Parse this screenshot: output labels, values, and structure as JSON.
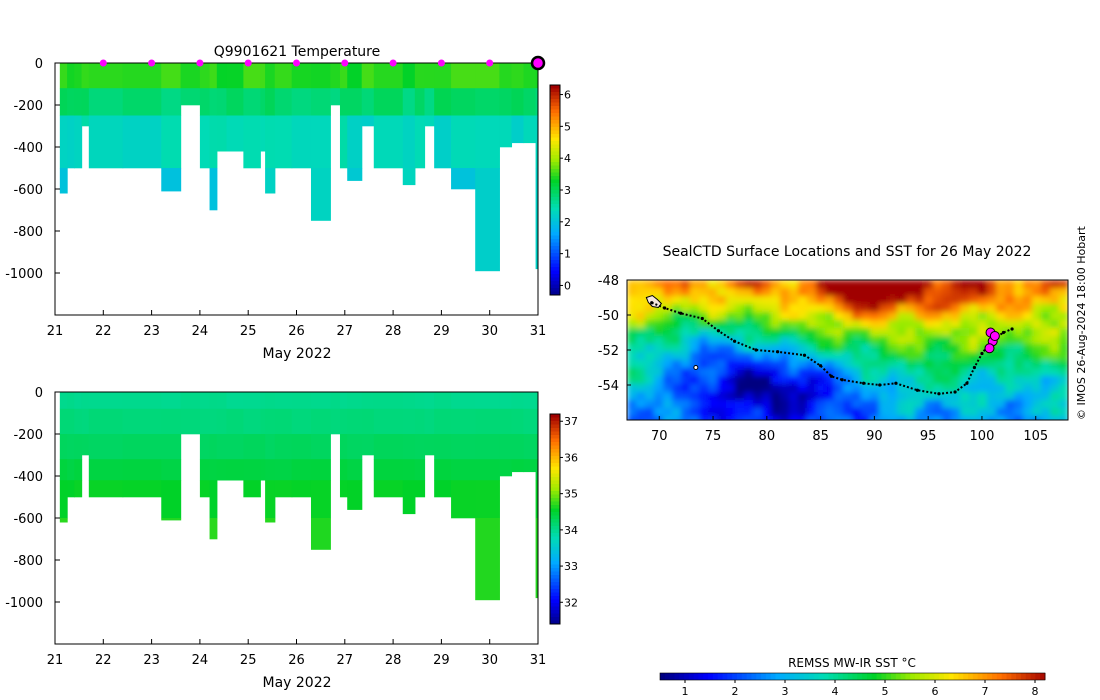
{
  "chart_data": [
    {
      "id": "temp",
      "type": "heatmap",
      "title": "Q9901621  Temperature",
      "xlabel": "May 2022",
      "ylabel": "",
      "xlim": [
        21,
        31
      ],
      "ylim": [
        0,
        -1200
      ],
      "x_ticks": [
        21,
        22,
        23,
        24,
        25,
        26,
        27,
        28,
        29,
        30,
        31
      ],
      "y_ticks": [
        0,
        -200,
        -400,
        -600,
        -800,
        -1000
      ],
      "colorbar": {
        "range": [
          -0.3,
          6.3
        ],
        "ticks": [
          0,
          1,
          2,
          3,
          4,
          5,
          6
        ]
      },
      "profile_markers_x": [
        22,
        23,
        24,
        25,
        26,
        27,
        28,
        29,
        30
      ],
      "last_marker_x": 31,
      "layers": [
        {
          "top": 0,
          "bottom": 120,
          "value": 3.5
        },
        {
          "top": 120,
          "bottom": 250,
          "value": 2.9
        },
        {
          "top": 250,
          "bottom": 500,
          "value": 2.4
        },
        {
          "top": 500,
          "bottom": 1000,
          "value": 2.2
        }
      ],
      "dive_depths": [
        {
          "x0": 21.1,
          "x1": 21.25,
          "depth": 620
        },
        {
          "x0": 21.25,
          "x1": 21.4,
          "depth": 500
        },
        {
          "x0": 21.4,
          "x1": 21.55,
          "depth": 500
        },
        {
          "x0": 21.55,
          "x1": 21.7,
          "depth": 300
        },
        {
          "x0": 21.7,
          "x1": 22.4,
          "depth": 500
        },
        {
          "x0": 22.4,
          "x1": 23.2,
          "depth": 500
        },
        {
          "x0": 23.2,
          "x1": 23.6,
          "depth": 610
        },
        {
          "x0": 23.6,
          "x1": 24.0,
          "depth": 200
        },
        {
          "x0": 24.0,
          "x1": 24.2,
          "depth": 500
        },
        {
          "x0": 24.2,
          "x1": 24.35,
          "depth": 700
        },
        {
          "x0": 24.35,
          "x1": 24.55,
          "depth": 420
        },
        {
          "x0": 24.55,
          "x1": 24.9,
          "depth": 420
        },
        {
          "x0": 24.9,
          "x1": 25.25,
          "depth": 500
        },
        {
          "x0": 25.25,
          "x1": 25.35,
          "depth": 420
        },
        {
          "x0": 25.35,
          "x1": 25.55,
          "depth": 620
        },
        {
          "x0": 25.55,
          "x1": 25.9,
          "depth": 500
        },
        {
          "x0": 25.9,
          "x1": 26.3,
          "depth": 500
        },
        {
          "x0": 26.3,
          "x1": 26.7,
          "depth": 750
        },
        {
          "x0": 26.7,
          "x1": 26.9,
          "depth": 200
        },
        {
          "x0": 26.9,
          "x1": 27.05,
          "depth": 500
        },
        {
          "x0": 27.05,
          "x1": 27.35,
          "depth": 560
        },
        {
          "x0": 27.35,
          "x1": 27.6,
          "depth": 300
        },
        {
          "x0": 27.6,
          "x1": 28.2,
          "depth": 500
        },
        {
          "x0": 28.2,
          "x1": 28.45,
          "depth": 580
        },
        {
          "x0": 28.45,
          "x1": 28.65,
          "depth": 500
        },
        {
          "x0": 28.65,
          "x1": 28.85,
          "depth": 300
        },
        {
          "x0": 28.85,
          "x1": 29.2,
          "depth": 500
        },
        {
          "x0": 29.2,
          "x1": 29.7,
          "depth": 600
        },
        {
          "x0": 29.7,
          "x1": 30.2,
          "depth": 990
        },
        {
          "x0": 30.2,
          "x1": 30.45,
          "depth": 400
        },
        {
          "x0": 30.45,
          "x1": 30.7,
          "depth": 380
        },
        {
          "x0": 30.7,
          "x1": 30.95,
          "depth": 380
        },
        {
          "x0": 30.95,
          "x1": 31.0,
          "depth": 980
        }
      ]
    },
    {
      "id": "sal",
      "type": "heatmap",
      "title": "",
      "xlabel": "May 2022",
      "ylabel": "",
      "xlim": [
        21,
        31
      ],
      "ylim": [
        0,
        -1200
      ],
      "x_ticks": [
        21,
        22,
        23,
        24,
        25,
        26,
        27,
        28,
        29,
        30,
        31
      ],
      "y_ticks": [
        0,
        -200,
        -400,
        -600,
        -800,
        -1000
      ],
      "colorbar": {
        "range": [
          31.4,
          37.2
        ],
        "ticks": [
          32,
          33,
          34,
          35,
          36,
          37
        ]
      },
      "layers": [
        {
          "top": 0,
          "bottom": 80,
          "value": 34.05
        },
        {
          "top": 80,
          "bottom": 200,
          "value": 34.15
        },
        {
          "top": 200,
          "bottom": 320,
          "value": 34.3
        },
        {
          "top": 320,
          "bottom": 420,
          "value": 34.45
        },
        {
          "top": 420,
          "bottom": 600,
          "value": 34.6
        },
        {
          "top": 600,
          "bottom": 1000,
          "value": 34.72
        }
      ]
    },
    {
      "id": "map",
      "type": "heatmap",
      "title": "SealCTD Surface Locations and SST for 26 May 2022",
      "xlabel": "",
      "ylabel": "",
      "xlim": [
        67,
        108
      ],
      "ylim": [
        -48,
        -56
      ],
      "x_ticks": [
        70,
        75,
        80,
        85,
        90,
        95,
        100,
        105
      ],
      "y_ticks": [
        -48,
        -50,
        -52,
        -54
      ],
      "colorbar": {
        "label": "REMSS MW-IR SST °C",
        "range": [
          0.5,
          8.2
        ],
        "ticks": [
          1,
          2,
          3,
          4,
          5,
          6,
          7,
          8
        ]
      },
      "track": [
        [
          69.3,
          -49.3
        ],
        [
          70.5,
          -49.6
        ],
        [
          72,
          -49.9
        ],
        [
          74,
          -50.2
        ],
        [
          75.5,
          -50.9
        ],
        [
          77,
          -51.5
        ],
        [
          79,
          -52.0
        ],
        [
          81,
          -52.1
        ],
        [
          83.5,
          -52.3
        ],
        [
          85,
          -52.9
        ],
        [
          86,
          -53.5
        ],
        [
          87,
          -53.7
        ],
        [
          89,
          -53.9
        ],
        [
          90.5,
          -54.0
        ],
        [
          92,
          -53.9
        ],
        [
          94,
          -54.3
        ],
        [
          96,
          -54.5
        ],
        [
          97.5,
          -54.4
        ],
        [
          98.6,
          -53.9
        ],
        [
          99.3,
          -53.0
        ],
        [
          100,
          -52.2
        ],
        [
          101,
          -51.4
        ],
        [
          102,
          -51.0
        ],
        [
          102.8,
          -50.8
        ]
      ],
      "highlight_points": [
        [
          100.8,
          -51.0
        ],
        [
          101.0,
          -51.5
        ],
        [
          100.7,
          -51.9
        ],
        [
          101.2,
          -51.2
        ]
      ],
      "island_points": [
        [
          73.4,
          -53.0
        ]
      ]
    }
  ],
  "credit": "© IMOS 26-Aug-2024 18:00 Hobart"
}
